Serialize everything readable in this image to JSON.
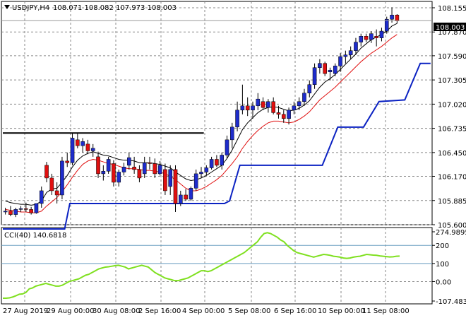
{
  "symbol": "USDJPY,H4",
  "ohlc": "108.071 108.082 107.973 108.003",
  "cci_header": "CCI(40) 140.6818",
  "price_tag": "108.003",
  "colors": {
    "bull_body": "#1e2ccc",
    "bear_body": "#e01010",
    "wick": "#000000",
    "ma_black": "#000000",
    "ma_red": "#e01010",
    "support_blue": "#0b22c2",
    "cci_line": "#7fe01f",
    "grid": "#8a8a8a",
    "level": "#6a9ec0"
  },
  "chart_data": [
    {
      "type": "candlestick",
      "title": "USDJPY,H4",
      "y_ticks": [
        "108.155",
        "107.870",
        "107.590",
        "107.305",
        "107.020",
        "106.735",
        "106.450",
        "106.170",
        "105.885",
        "105.600"
      ],
      "x_ticks": [
        "27 Aug 2019",
        "29 Aug 00:00",
        "30 Aug 08:00",
        "2 Sep 16:00",
        "4 Sep 00:00",
        "5 Sep 08:00",
        "6 Sep 16:00",
        "10 Sep 00:00",
        "11 Sep 08:00"
      ],
      "ylim": [
        105.6,
        108.18
      ],
      "current_price": 108.003,
      "candles": [
        [
          105.75,
          105.8,
          105.72,
          105.76
        ],
        [
          105.76,
          105.82,
          105.7,
          105.72
        ],
        [
          105.72,
          105.8,
          105.69,
          105.78
        ],
        [
          105.78,
          105.82,
          105.75,
          105.79
        ],
        [
          105.79,
          105.86,
          105.75,
          105.78
        ],
        [
          105.78,
          105.81,
          105.72,
          105.74
        ],
        [
          105.74,
          105.85,
          105.73,
          105.85
        ],
        [
          105.85,
          106.05,
          105.8,
          106.0
        ],
        [
          106.3,
          106.34,
          106.1,
          106.15
        ],
        [
          106.15,
          106.2,
          105.95,
          106.0
        ],
        [
          106.0,
          106.1,
          105.85,
          105.95
        ],
        [
          105.95,
          106.4,
          105.9,
          106.35
        ],
        [
          106.35,
          106.45,
          106.28,
          106.33
        ],
        [
          106.33,
          106.68,
          106.3,
          106.62
        ],
        [
          106.6,
          106.68,
          106.5,
          106.53
        ],
        [
          106.53,
          106.62,
          106.45,
          106.58
        ],
        [
          106.55,
          106.6,
          106.43,
          106.47
        ],
        [
          106.47,
          106.55,
          106.4,
          106.5
        ],
        [
          106.4,
          106.46,
          106.15,
          106.2
        ],
        [
          106.2,
          106.3,
          106.12,
          106.23
        ],
        [
          106.23,
          106.4,
          106.2,
          106.37
        ],
        [
          106.32,
          106.36,
          106.05,
          106.1
        ],
        [
          106.1,
          106.25,
          106.05,
          106.22
        ],
        [
          106.22,
          106.33,
          106.18,
          106.28
        ],
        [
          106.3,
          106.45,
          106.25,
          106.39
        ],
        [
          106.28,
          106.4,
          106.2,
          106.25
        ],
        [
          106.25,
          106.3,
          106.1,
          106.15
        ],
        [
          106.2,
          106.4,
          106.15,
          106.33
        ],
        [
          106.33,
          106.4,
          106.25,
          106.32
        ],
        [
          106.32,
          106.38,
          106.15,
          106.2
        ],
        [
          106.2,
          106.35,
          106.18,
          106.3
        ],
        [
          106.25,
          106.32,
          105.95,
          106.0
        ],
        [
          106.05,
          106.3,
          105.95,
          106.25
        ],
        [
          106.25,
          106.3,
          105.75,
          105.85
        ],
        [
          105.85,
          106.0,
          105.82,
          105.95
        ],
        [
          105.95,
          106.02,
          105.88,
          105.9
        ],
        [
          105.9,
          106.05,
          105.88,
          106.03
        ],
        [
          106.03,
          106.25,
          106.0,
          106.2
        ],
        [
          106.2,
          106.28,
          106.15,
          106.22
        ],
        [
          106.22,
          106.3,
          106.18,
          106.27
        ],
        [
          106.27,
          106.4,
          106.25,
          106.37
        ],
        [
          106.37,
          106.42,
          106.28,
          106.3
        ],
        [
          106.3,
          106.45,
          106.25,
          106.42
        ],
        [
          106.42,
          106.65,
          106.38,
          106.6
        ],
        [
          106.6,
          106.8,
          106.5,
          106.75
        ],
        [
          106.75,
          107.05,
          106.7,
          106.95
        ],
        [
          106.95,
          107.25,
          106.9,
          107.0
        ],
        [
          107.0,
          107.1,
          106.88,
          106.95
        ],
        [
          106.95,
          107.05,
          106.85,
          107.0
        ],
        [
          107.0,
          107.15,
          106.95,
          107.08
        ],
        [
          107.05,
          107.1,
          106.95,
          106.98
        ],
        [
          106.98,
          107.08,
          106.92,
          107.05
        ],
        [
          107.05,
          107.1,
          106.9,
          106.92
        ],
        [
          106.92,
          107.0,
          106.85,
          106.9
        ],
        [
          106.9,
          106.95,
          106.8,
          106.85
        ],
        [
          106.85,
          106.98,
          106.78,
          106.95
        ],
        [
          106.95,
          107.05,
          106.9,
          107.0
        ],
        [
          107.0,
          107.1,
          106.95,
          107.05
        ],
        [
          107.05,
          107.2,
          107.0,
          107.15
        ],
        [
          107.15,
          107.3,
          107.1,
          107.25
        ],
        [
          107.25,
          107.5,
          107.2,
          107.45
        ],
        [
          107.45,
          107.55,
          107.38,
          107.5
        ],
        [
          107.5,
          107.52,
          107.35,
          107.38
        ],
        [
          107.4,
          107.45,
          107.3,
          107.42
        ],
        [
          107.38,
          107.5,
          107.35,
          107.47
        ],
        [
          107.47,
          107.62,
          107.4,
          107.58
        ],
        [
          107.58,
          107.65,
          107.5,
          107.6
        ],
        [
          107.6,
          107.7,
          107.55,
          107.65
        ],
        [
          107.65,
          107.8,
          107.6,
          107.75
        ],
        [
          107.75,
          107.85,
          107.7,
          107.82
        ],
        [
          107.82,
          107.85,
          107.75,
          107.78
        ],
        [
          107.78,
          107.88,
          107.74,
          107.85
        ],
        [
          107.82,
          107.9,
          107.7,
          107.8
        ],
        [
          107.8,
          107.92,
          107.76,
          107.88
        ],
        [
          107.88,
          108.05,
          107.85,
          108.02
        ],
        [
          108.02,
          108.16,
          107.98,
          108.07
        ],
        [
          108.07,
          108.08,
          107.97,
          108.0
        ]
      ],
      "ma_black": [
        105.88,
        105.86,
        105.85,
        105.84,
        105.84,
        105.83,
        105.84,
        105.88,
        105.98,
        106.02,
        106.03,
        106.1,
        106.18,
        106.28,
        106.36,
        106.41,
        106.44,
        106.46,
        106.44,
        106.42,
        106.41,
        106.39,
        106.37,
        106.36,
        106.36,
        106.35,
        106.33,
        106.33,
        106.33,
        106.32,
        106.31,
        106.29,
        106.27,
        106.22,
        106.18,
        106.14,
        106.12,
        106.13,
        106.15,
        106.18,
        106.22,
        106.26,
        106.3,
        106.38,
        106.48,
        106.6,
        106.72,
        106.8,
        106.86,
        106.92,
        106.96,
        106.98,
        106.99,
        106.98,
        106.96,
        106.94,
        106.95,
        106.97,
        107.01,
        107.06,
        107.14,
        107.22,
        107.28,
        107.32,
        107.37,
        107.43,
        107.49,
        107.55,
        107.61,
        107.68,
        107.73,
        107.78,
        107.81,
        107.84,
        107.88,
        107.94,
        107.97
      ],
      "ma_red": [
        105.78,
        105.77,
        105.76,
        105.75,
        105.75,
        105.74,
        105.74,
        105.76,
        105.82,
        105.87,
        105.92,
        105.99,
        106.07,
        106.16,
        106.24,
        106.31,
        106.35,
        106.37,
        106.36,
        106.34,
        106.32,
        106.31,
        106.29,
        106.27,
        106.26,
        106.26,
        106.25,
        106.24,
        106.24,
        106.23,
        106.22,
        106.2,
        106.17,
        106.13,
        106.08,
        106.03,
        106.0,
        106.0,
        106.02,
        106.05,
        106.09,
        106.13,
        106.18,
        106.25,
        106.32,
        106.4,
        106.5,
        106.58,
        106.65,
        106.71,
        106.76,
        106.8,
        106.82,
        106.82,
        106.81,
        106.8,
        106.81,
        106.84,
        106.88,
        106.93,
        107.0,
        107.07,
        107.12,
        107.17,
        107.22,
        107.28,
        107.34,
        107.4,
        107.46,
        107.52,
        107.57,
        107.62,
        107.66,
        107.7,
        107.75,
        107.8,
        107.84
      ],
      "support_line": [
        [
          0,
          105.55
        ],
        [
          12,
          105.55
        ],
        [
          13,
          105.85
        ],
        [
          43,
          105.85
        ],
        [
          44,
          105.88
        ],
        [
          46,
          106.3
        ],
        [
          62,
          106.3
        ],
        [
          65,
          106.75
        ],
        [
          70,
          106.75
        ],
        [
          73,
          107.05
        ],
        [
          78,
          107.07
        ],
        [
          81,
          107.5
        ],
        [
          83,
          107.5
        ]
      ],
      "resistance_segments": [
        {
          "from": 0,
          "to": 38,
          "value": 106.68
        }
      ]
    },
    {
      "type": "line",
      "title": "CCI(40) 140.6818",
      "y_ticks": [
        "274.9895",
        "200",
        "100",
        "0.00",
        "-107.4838"
      ],
      "ylim": [
        -107.4838,
        274.9895
      ],
      "levels": [
        200,
        100
      ],
      "values": [
        -92,
        -92,
        -90,
        -85,
        -78,
        -70,
        -68,
        -60,
        -40,
        -35,
        -25,
        -20,
        -15,
        -10,
        -15,
        -20,
        -25,
        -25,
        -20,
        -10,
        0,
        5,
        10,
        15,
        25,
        35,
        40,
        50,
        60,
        70,
        75,
        80,
        82,
        85,
        88,
        90,
        85,
        80,
        70,
        75,
        80,
        85,
        90,
        85,
        80,
        65,
        50,
        40,
        30,
        20,
        15,
        10,
        5,
        5,
        10,
        15,
        20,
        30,
        40,
        50,
        60,
        60,
        55,
        60,
        70,
        80,
        90,
        100,
        110,
        120,
        130,
        140,
        150,
        160,
        175,
        190,
        205,
        220,
        245,
        265,
        270,
        265,
        255,
        245,
        230,
        220,
        200,
        185,
        170,
        160,
        155,
        150,
        145,
        140,
        135,
        140,
        145,
        150,
        148,
        145,
        140,
        138,
        135,
        130,
        128,
        130,
        135,
        138,
        140,
        145,
        150,
        148,
        146,
        145,
        142,
        140,
        138,
        136,
        137,
        140,
        141
      ]
    }
  ]
}
